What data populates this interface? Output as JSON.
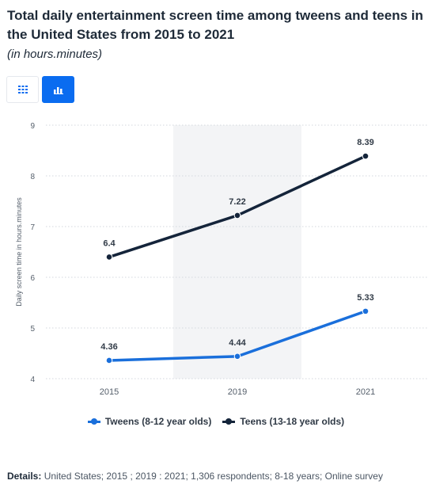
{
  "title": "Total daily entertainment screen time among tweens and teens in the United States from 2015 to 2021",
  "subtitle": "(in hours.minutes)",
  "toolbar": {
    "table_icon": "table-grid-icon",
    "chart_icon": "bar-chart-icon",
    "accent": "#0a6cf0"
  },
  "details": {
    "label": "Details:",
    "text": "United States; 2015 ; 2019 : 2021; 1,306 respondents; 8-18 years; Online survey"
  },
  "chart_data": {
    "type": "line",
    "x": [
      "2015",
      "2019",
      "2021"
    ],
    "ylabel": "Daily screen time in hours.minutes",
    "xlabel": "",
    "ylim": [
      4,
      9
    ],
    "yticks": [
      "4",
      "5",
      "6",
      "7",
      "8",
      "9"
    ],
    "grid": true,
    "legend_position": "bottom",
    "highlight_band": "2019",
    "series": [
      {
        "name": "Tweens (8-12 year olds)",
        "color": "#1a6fdb",
        "values": [
          4.36,
          4.44,
          5.33
        ],
        "labels": [
          "4.36",
          "4.44",
          "5.33"
        ]
      },
      {
        "name": "Teens (13-18 year olds)",
        "color": "#14243a",
        "values": [
          6.4,
          7.22,
          8.39
        ],
        "labels": [
          "6.4",
          "7.22",
          "8.39"
        ]
      }
    ]
  }
}
